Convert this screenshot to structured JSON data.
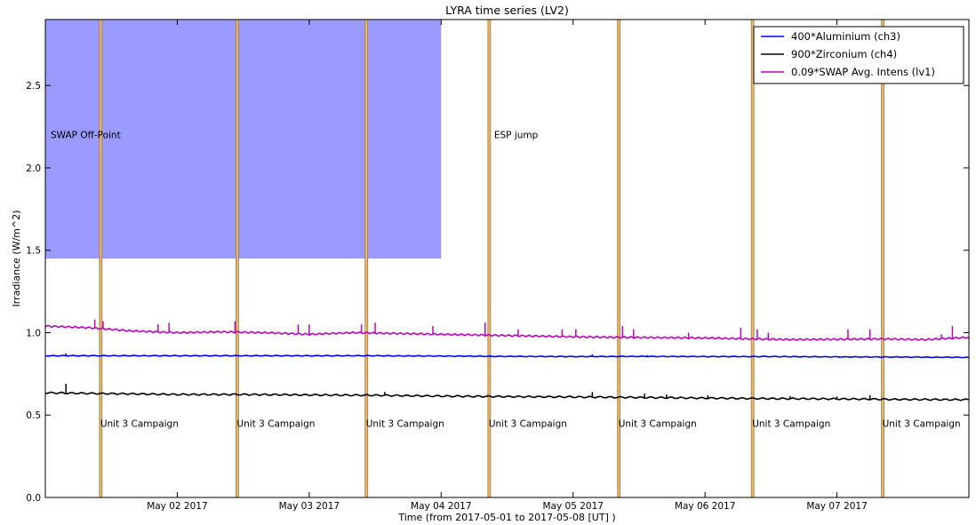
{
  "chart_data": {
    "type": "line",
    "title": "LYRA time series (LV2)",
    "xlabel": "Time (from 2017-05-01 to 2017-05-08 [UT] )",
    "ylabel": "Irradiance (W/m^2)",
    "xlim": [
      "2017-05-01T00:00",
      "2017-05-08T00:00"
    ],
    "ylim": [
      0.0,
      2.9
    ],
    "x_ticks": [
      {
        "t": "2017-05-02T00:00",
        "label": "May 02 2017"
      },
      {
        "t": "2017-05-03T00:00",
        "label": "May 03 2017"
      },
      {
        "t": "2017-05-04T00:00",
        "label": "May 04 2017"
      },
      {
        "t": "2017-05-05T00:00",
        "label": "May 05 2017"
      },
      {
        "t": "2017-05-06T00:00",
        "label": "May 06 2017"
      },
      {
        "t": "2017-05-07T00:00",
        "label": "May 07 2017"
      }
    ],
    "y_ticks": [
      "0.0",
      "0.5",
      "1.0",
      "1.5",
      "2.0",
      "2.5"
    ],
    "legend_position": "top-right",
    "series": [
      {
        "name": "400*Aluminium (ch3)",
        "color": "#0000ff",
        "x": [
          "2017-05-01T00:00",
          "2017-05-01T12:00",
          "2017-05-02T00:00",
          "2017-05-02T12:00",
          "2017-05-03T00:00",
          "2017-05-03T12:00",
          "2017-05-04T00:00",
          "2017-05-04T12:00",
          "2017-05-05T00:00",
          "2017-05-05T12:00",
          "2017-05-06T00:00",
          "2017-05-06T12:00",
          "2017-05-07T00:00",
          "2017-05-07T12:00",
          "2017-05-08T00:00"
        ],
        "values": [
          0.86,
          0.86,
          0.86,
          0.86,
          0.86,
          0.86,
          0.858,
          0.856,
          0.855,
          0.856,
          0.855,
          0.855,
          0.853,
          0.852,
          0.85
        ],
        "spikes": [
          {
            "t": "2017-05-01T03:45",
            "v": 0.875
          },
          {
            "t": "2017-05-05T03:30",
            "v": 0.868
          },
          {
            "t": "2017-05-05T13:30",
            "v": 0.864
          }
        ]
      },
      {
        "name": "900*Zirconium (ch4)",
        "color": "#000000",
        "x": [
          "2017-05-01T00:00",
          "2017-05-01T12:00",
          "2017-05-02T00:00",
          "2017-05-02T12:00",
          "2017-05-03T00:00",
          "2017-05-03T12:00",
          "2017-05-04T00:00",
          "2017-05-04T12:00",
          "2017-05-05T00:00",
          "2017-05-05T12:00",
          "2017-05-06T00:00",
          "2017-05-06T12:00",
          "2017-05-07T00:00",
          "2017-05-07T12:00",
          "2017-05-08T00:00"
        ],
        "values": [
          0.635,
          0.63,
          0.625,
          0.625,
          0.622,
          0.62,
          0.615,
          0.612,
          0.61,
          0.607,
          0.603,
          0.6,
          0.598,
          0.595,
          0.593
        ],
        "spikes": [
          {
            "t": "2017-05-01T03:45",
            "v": 0.69
          },
          {
            "t": "2017-05-03T13:45",
            "v": 0.64
          },
          {
            "t": "2017-05-05T03:30",
            "v": 0.64
          },
          {
            "t": "2017-05-05T13:00",
            "v": 0.63
          },
          {
            "t": "2017-05-05T17:00",
            "v": 0.625
          },
          {
            "t": "2017-05-06T00:30",
            "v": 0.62
          },
          {
            "t": "2017-05-06T15:30",
            "v": 0.615
          },
          {
            "t": "2017-05-07T00:00",
            "v": 0.612
          },
          {
            "t": "2017-05-07T06:00",
            "v": 0.62
          }
        ]
      },
      {
        "name": "0.09*SWAP Avg. Intens (lv1)",
        "color": "#c000c0",
        "x": [
          "2017-05-01T00:00",
          "2017-05-01T08:00",
          "2017-05-01T16:00",
          "2017-05-02T00:00",
          "2017-05-02T08:00",
          "2017-05-02T16:00",
          "2017-05-03T00:00",
          "2017-05-03T08:00",
          "2017-05-03T16:00",
          "2017-05-04T00:00",
          "2017-05-04T08:00",
          "2017-05-04T16:00",
          "2017-05-05T00:00",
          "2017-05-05T08:00",
          "2017-05-05T16:00",
          "2017-05-06T00:00",
          "2017-05-06T08:00",
          "2017-05-06T16:00",
          "2017-05-07T00:00",
          "2017-05-07T08:00",
          "2017-05-07T16:00",
          "2017-05-08T00:00"
        ],
        "values": [
          1.04,
          1.03,
          1.01,
          1.0,
          1.005,
          1.0,
          0.99,
          1.0,
          0.995,
          0.99,
          0.985,
          0.98,
          0.975,
          0.972,
          0.97,
          0.968,
          0.962,
          0.958,
          0.96,
          0.962,
          0.958,
          0.972
        ],
        "spikes": [
          {
            "t": "2017-05-01T09:00",
            "v": 1.08
          },
          {
            "t": "2017-05-01T10:30",
            "v": 1.07
          },
          {
            "t": "2017-05-01T20:30",
            "v": 1.05
          },
          {
            "t": "2017-05-01T22:30",
            "v": 1.06
          },
          {
            "t": "2017-05-02T10:30",
            "v": 1.07
          },
          {
            "t": "2017-05-02T22:00",
            "v": 1.05
          },
          {
            "t": "2017-05-03T00:00",
            "v": 1.05
          },
          {
            "t": "2017-05-03T09:30",
            "v": 1.05
          },
          {
            "t": "2017-05-03T12:00",
            "v": 1.06
          },
          {
            "t": "2017-05-03T20:30",
            "v": 1.0
          },
          {
            "t": "2017-05-03T22:30",
            "v": 1.04
          },
          {
            "t": "2017-05-04T08:00",
            "v": 1.06
          },
          {
            "t": "2017-05-04T14:00",
            "v": 1.02
          },
          {
            "t": "2017-05-04T22:00",
            "v": 1.02
          },
          {
            "t": "2017-05-05T00:30",
            "v": 1.02
          },
          {
            "t": "2017-05-05T09:00",
            "v": 1.04
          },
          {
            "t": "2017-05-05T11:00",
            "v": 1.02
          },
          {
            "t": "2017-05-05T21:00",
            "v": 1.0
          },
          {
            "t": "2017-05-06T06:30",
            "v": 1.03
          },
          {
            "t": "2017-05-06T09:30",
            "v": 1.02
          },
          {
            "t": "2017-05-06T11:30",
            "v": 1.0
          },
          {
            "t": "2017-05-07T02:00",
            "v": 1.02
          },
          {
            "t": "2017-05-07T06:00",
            "v": 1.02
          },
          {
            "t": "2017-05-07T19:00",
            "v": 0.99
          },
          {
            "t": "2017-05-07T21:00",
            "v": 1.04
          }
        ]
      }
    ],
    "shaded_regions": [
      {
        "label": "SWAP Off-Point",
        "start": "2017-05-01T00:00",
        "end": "2017-05-04T00:00",
        "y_from": 1.45,
        "y_to": 2.9,
        "color": "#8c8cff"
      },
      {
        "label": "ESP jump",
        "start": "2017-05-04T08:40",
        "end": "2017-05-04T09:00",
        "y_from": 1.45,
        "y_to": 2.9,
        "color": "#6a6ad8"
      }
    ],
    "campaign_bands": {
      "label": "Unit 3 Campaign",
      "label_y": 0.45,
      "color": "#e8b86a",
      "edge_color": "#a07a40",
      "intervals": [
        {
          "start": "2017-05-01T09:50",
          "end": "2017-05-01T10:15"
        },
        {
          "start": "2017-05-02T10:40",
          "end": "2017-05-02T11:05"
        },
        {
          "start": "2017-05-03T10:10",
          "end": "2017-05-03T10:35"
        },
        {
          "start": "2017-05-04T08:30",
          "end": "2017-05-04T08:55"
        },
        {
          "start": "2017-05-05T08:05",
          "end": "2017-05-05T08:30"
        },
        {
          "start": "2017-05-06T08:25",
          "end": "2017-05-06T08:50"
        },
        {
          "start": "2017-05-07T08:05",
          "end": "2017-05-07T08:30"
        }
      ]
    }
  }
}
